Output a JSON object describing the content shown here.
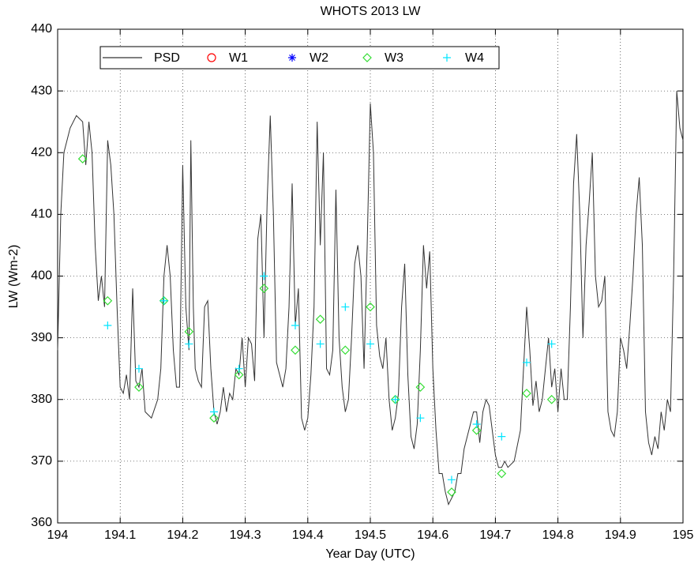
{
  "chart_data": {
    "type": "line",
    "title": "WHOTS 2013 LW",
    "xlabel": "Year Day (UTC)",
    "ylabel": "LW (Wm-2)",
    "xlim": [
      194,
      195
    ],
    "ylim": [
      360,
      440
    ],
    "xticks": [
      194,
      194.1,
      194.2,
      194.3,
      194.4,
      194.5,
      194.6,
      194.7,
      194.8,
      194.9,
      195
    ],
    "yticks": [
      360,
      370,
      380,
      390,
      400,
      410,
      420,
      430,
      440
    ],
    "grid": true,
    "legend": "top-left",
    "series": [
      {
        "name": "PSD",
        "color": "#333333",
        "marker": "line",
        "x": [
          194.0,
          194.005,
          194.01,
          194.02,
          194.03,
          194.04,
          194.045,
          194.05,
          194.055,
          194.06,
          194.065,
          194.07,
          194.075,
          194.08,
          194.085,
          194.09,
          194.095,
          194.1,
          194.105,
          194.11,
          194.115,
          194.12,
          194.125,
          194.13,
          194.135,
          194.14,
          194.15,
          194.16,
          194.165,
          194.17,
          194.175,
          194.18,
          194.185,
          194.19,
          194.195,
          194.2,
          194.205,
          194.21,
          194.213,
          194.217,
          194.22,
          194.225,
          194.23,
          194.235,
          194.24,
          194.245,
          194.25,
          194.255,
          194.26,
          194.265,
          194.27,
          194.275,
          194.28,
          194.285,
          194.29,
          194.295,
          194.3,
          194.305,
          194.31,
          194.315,
          194.32,
          194.325,
          194.33,
          194.335,
          194.34,
          194.345,
          194.35,
          194.355,
          194.36,
          194.365,
          194.37,
          194.375,
          194.38,
          194.385,
          194.39,
          194.395,
          194.4,
          194.405,
          194.41,
          194.415,
          194.42,
          194.425,
          194.43,
          194.435,
          194.44,
          194.445,
          194.45,
          194.455,
          194.46,
          194.465,
          194.47,
          194.475,
          194.48,
          194.485,
          194.49,
          194.495,
          194.5,
          194.505,
          194.51,
          194.515,
          194.52,
          194.525,
          194.53,
          194.535,
          194.54,
          194.545,
          194.55,
          194.555,
          194.56,
          194.565,
          194.57,
          194.575,
          194.58,
          194.585,
          194.59,
          194.595,
          194.6,
          194.605,
          194.61,
          194.615,
          194.62,
          194.625,
          194.63,
          194.635,
          194.64,
          194.645,
          194.65,
          194.655,
          194.66,
          194.665,
          194.67,
          194.675,
          194.68,
          194.685,
          194.69,
          194.695,
          194.7,
          194.705,
          194.71,
          194.715,
          194.72,
          194.73,
          194.74,
          194.745,
          194.75,
          194.755,
          194.76,
          194.765,
          194.77,
          194.775,
          194.78,
          194.785,
          194.79,
          194.795,
          194.8,
          194.805,
          194.81,
          194.815,
          194.82,
          194.825,
          194.83,
          194.835,
          194.84,
          194.845,
          194.85,
          194.855,
          194.86,
          194.865,
          194.87,
          194.875,
          194.88,
          194.885,
          194.89,
          194.895,
          194.9,
          194.905,
          194.91,
          194.915,
          194.92,
          194.925,
          194.93,
          194.935,
          194.94,
          194.945,
          194.95,
          194.955,
          194.96,
          194.965,
          194.97,
          194.975,
          194.98,
          194.985,
          194.99,
          194.995,
          195.0
        ],
        "values": [
          388,
          410,
          420,
          424,
          426,
          425,
          418,
          425,
          420,
          405,
          396,
          400,
          395,
          422,
          418,
          410,
          395,
          382,
          381,
          384,
          380,
          398,
          383,
          382,
          385,
          378,
          377,
          380,
          385,
          400,
          405,
          400,
          388,
          382,
          382,
          418,
          395,
          388,
          422,
          395,
          385,
          383,
          382,
          395,
          396,
          385,
          378,
          376,
          378,
          382,
          378,
          381,
          380,
          385,
          384,
          390,
          382,
          390,
          389,
          383,
          406,
          410,
          390,
          412,
          426,
          410,
          386,
          384,
          382,
          385,
          395,
          415,
          392,
          398,
          377,
          375,
          377,
          384,
          395,
          425,
          405,
          420,
          385,
          384,
          388,
          414,
          390,
          382,
          378,
          380,
          390,
          402,
          405,
          400,
          385,
          405,
          428,
          420,
          392,
          387,
          385,
          390,
          380,
          375,
          377,
          381,
          395,
          402,
          384,
          374,
          372,
          376,
          388,
          405,
          398,
          404,
          385,
          375,
          368,
          368,
          365,
          363,
          364,
          365,
          368,
          368,
          372,
          374,
          376,
          378,
          378,
          373,
          378,
          380,
          379,
          375,
          371,
          369,
          369,
          370,
          369,
          370,
          375,
          385,
          395,
          388,
          379,
          383,
          378,
          380,
          385,
          390,
          382,
          385,
          378,
          385,
          380,
          380,
          395,
          415,
          423,
          410,
          390,
          405,
          412,
          420,
          400,
          395,
          396,
          400,
          378,
          375,
          374,
          378,
          390,
          388,
          385,
          392,
          400,
          410,
          416,
          405,
          378,
          373,
          371,
          374,
          372,
          378,
          375,
          380,
          378,
          400,
          430,
          424,
          422
        ]
      },
      {
        "name": "W1",
        "color": "#ff0000",
        "marker": "circle",
        "x": [],
        "values": []
      },
      {
        "name": "W2",
        "color": "#0000ff",
        "marker": "asterisk",
        "x": [],
        "values": []
      },
      {
        "name": "W3",
        "color": "#33dd33",
        "marker": "diamond",
        "x": [
          194.04,
          194.08,
          194.13,
          194.17,
          194.21,
          194.25,
          194.29,
          194.33,
          194.38,
          194.42,
          194.46,
          194.5,
          194.54,
          194.58,
          194.63,
          194.67,
          194.71,
          194.75,
          194.79
        ],
        "values": [
          419,
          396,
          382,
          396,
          391,
          377,
          384,
          398,
          388,
          393,
          388,
          395,
          380,
          382,
          365,
          375,
          368,
          381,
          380
        ]
      },
      {
        "name": "W4",
        "color": "#00e5ff",
        "marker": "plus",
        "x": [
          194.08,
          194.13,
          194.17,
          194.21,
          194.25,
          194.29,
          194.33,
          194.38,
          194.42,
          194.46,
          194.5,
          194.54,
          194.58,
          194.63,
          194.67,
          194.71,
          194.75,
          194.79
        ],
        "values": [
          392,
          385,
          396,
          389,
          378,
          385,
          400,
          392,
          389,
          395,
          389,
          380,
          377,
          367,
          376,
          374,
          386,
          389
        ]
      }
    ]
  }
}
